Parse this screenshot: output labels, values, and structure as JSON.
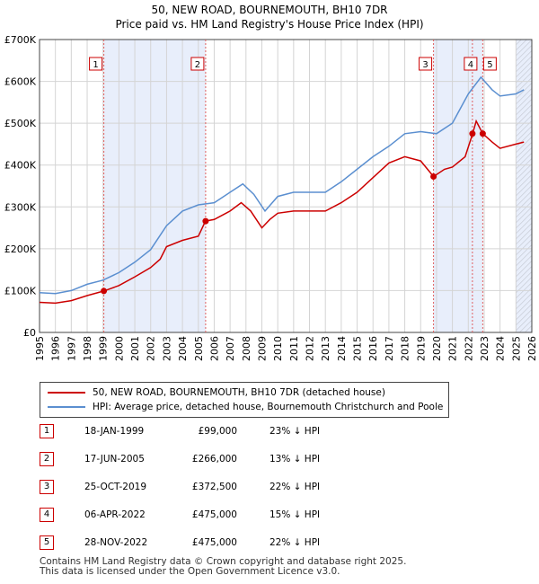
{
  "chart_data": {
    "type": "line",
    "title": "50, NEW ROAD, BOURNEMOUTH, BH10 7DR",
    "subtitle": "Price paid vs. HM Land Registry's House Price Index (HPI)",
    "xlabel": "",
    "ylabel": "",
    "xlim": [
      1995,
      2026
    ],
    "ylim": [
      0,
      700000
    ],
    "x_ticks": [
      "1995",
      "1996",
      "1997",
      "1998",
      "1999",
      "2000",
      "2001",
      "2002",
      "2003",
      "2004",
      "2005",
      "2006",
      "2007",
      "2008",
      "2009",
      "2010",
      "2011",
      "2012",
      "2013",
      "2014",
      "2015",
      "2016",
      "2017",
      "2018",
      "2019",
      "2020",
      "2021",
      "2022",
      "2023",
      "2024",
      "2025",
      "2026"
    ],
    "y_ticks": [
      {
        "value": 0,
        "label": "£0"
      },
      {
        "value": 100000,
        "label": "£100K"
      },
      {
        "value": 200000,
        "label": "£200K"
      },
      {
        "value": 300000,
        "label": "£300K"
      },
      {
        "value": 400000,
        "label": "£400K"
      },
      {
        "value": 500000,
        "label": "£500K"
      },
      {
        "value": 600000,
        "label": "£600K"
      },
      {
        "value": 700000,
        "label": "£700K"
      }
    ],
    "grid": true,
    "series": [
      {
        "name": "50, NEW ROAD, BOURNEMOUTH, BH10 7DR (detached house)",
        "color": "#cc0000",
        "points": [
          [
            1995.0,
            72000
          ],
          [
            1996.0,
            70000
          ],
          [
            1997.0,
            76000
          ],
          [
            1998.0,
            88000
          ],
          [
            1999.05,
            99000
          ],
          [
            2000.0,
            112000
          ],
          [
            2001.0,
            133000
          ],
          [
            2002.0,
            155000
          ],
          [
            2002.6,
            175000
          ],
          [
            2003.0,
            205000
          ],
          [
            2004.0,
            220000
          ],
          [
            2005.0,
            230000
          ],
          [
            2005.45,
            266000
          ],
          [
            2006.0,
            270000
          ],
          [
            2007.0,
            290000
          ],
          [
            2007.7,
            310000
          ],
          [
            2008.3,
            290000
          ],
          [
            2009.0,
            250000
          ],
          [
            2009.5,
            270000
          ],
          [
            2010.0,
            285000
          ],
          [
            2011.0,
            290000
          ],
          [
            2012.0,
            290000
          ],
          [
            2013.0,
            290000
          ],
          [
            2014.0,
            310000
          ],
          [
            2015.0,
            335000
          ],
          [
            2016.0,
            370000
          ],
          [
            2017.0,
            405000
          ],
          [
            2018.0,
            420000
          ],
          [
            2019.0,
            410000
          ],
          [
            2019.81,
            372500
          ],
          [
            2020.5,
            390000
          ],
          [
            2021.0,
            395000
          ],
          [
            2021.8,
            420000
          ],
          [
            2022.27,
            475000
          ],
          [
            2022.5,
            505000
          ],
          [
            2022.91,
            475000
          ],
          [
            2023.5,
            455000
          ],
          [
            2024.0,
            440000
          ],
          [
            2025.0,
            450000
          ],
          [
            2025.5,
            455000
          ]
        ]
      },
      {
        "name": "HPI: Average price, detached house, Bournemouth Christchurch and Poole",
        "color": "#5b8fd0",
        "points": [
          [
            1995.0,
            95000
          ],
          [
            1996.0,
            93000
          ],
          [
            1997.0,
            100000
          ],
          [
            1998.0,
            115000
          ],
          [
            1999.0,
            125000
          ],
          [
            2000.0,
            143000
          ],
          [
            2001.0,
            168000
          ],
          [
            2002.0,
            198000
          ],
          [
            2003.0,
            255000
          ],
          [
            2004.0,
            290000
          ],
          [
            2005.0,
            305000
          ],
          [
            2006.0,
            310000
          ],
          [
            2007.0,
            335000
          ],
          [
            2007.8,
            355000
          ],
          [
            2008.5,
            330000
          ],
          [
            2009.2,
            290000
          ],
          [
            2010.0,
            325000
          ],
          [
            2011.0,
            335000
          ],
          [
            2012.0,
            335000
          ],
          [
            2013.0,
            335000
          ],
          [
            2014.0,
            360000
          ],
          [
            2015.0,
            390000
          ],
          [
            2016.0,
            420000
          ],
          [
            2017.0,
            445000
          ],
          [
            2018.0,
            475000
          ],
          [
            2019.0,
            480000
          ],
          [
            2020.0,
            475000
          ],
          [
            2021.0,
            500000
          ],
          [
            2022.0,
            570000
          ],
          [
            2022.8,
            610000
          ],
          [
            2023.5,
            580000
          ],
          [
            2024.0,
            565000
          ],
          [
            2025.0,
            570000
          ],
          [
            2025.5,
            580000
          ]
        ]
      }
    ],
    "transactions": [
      {
        "id": "1",
        "year": 1999.05,
        "price": 99000
      },
      {
        "id": "2",
        "year": 2005.46,
        "price": 266000
      },
      {
        "id": "3",
        "year": 2019.81,
        "price": 372500
      },
      {
        "id": "4",
        "year": 2022.26,
        "price": 475000
      },
      {
        "id": "5",
        "year": 2022.91,
        "price": 475000
      }
    ],
    "shaded_periods": [
      [
        1999.05,
        2005.46
      ],
      [
        2019.81,
        2022.91
      ],
      [
        2025.0,
        2026.0
      ]
    ]
  },
  "legend": {
    "property_label": "50, NEW ROAD, BOURNEMOUTH, BH10 7DR (detached house)",
    "hpi_label": "HPI: Average price, detached house, Bournemouth Christchurch and Poole",
    "property_color": "#cc0000",
    "hpi_color": "#5b8fd0"
  },
  "table": [
    {
      "num": "1",
      "date": "18-JAN-1999",
      "price": "£99,000",
      "hpi": "23% ↓ HPI"
    },
    {
      "num": "2",
      "date": "17-JUN-2005",
      "price": "£266,000",
      "hpi": "13% ↓ HPI"
    },
    {
      "num": "3",
      "date": "25-OCT-2019",
      "price": "£372,500",
      "hpi": "22% ↓ HPI"
    },
    {
      "num": "4",
      "date": "06-APR-2022",
      "price": "£475,000",
      "hpi": "15% ↓ HPI"
    },
    {
      "num": "5",
      "date": "28-NOV-2022",
      "price": "£475,000",
      "hpi": "22% ↓ HPI"
    }
  ],
  "footer": {
    "line1": "Contains HM Land Registry data © Crown copyright and database right 2025.",
    "line2": "This data is licensed under the Open Government Licence v3.0."
  }
}
